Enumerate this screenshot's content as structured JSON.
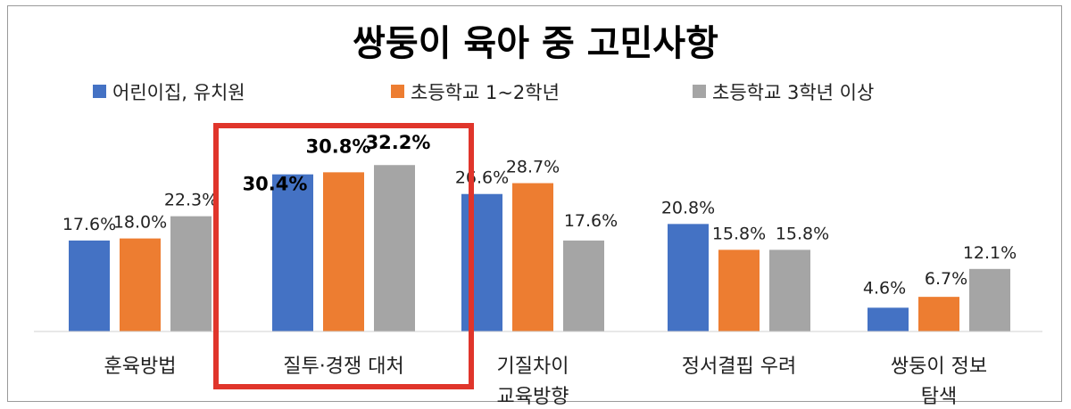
{
  "chart_data": {
    "type": "bar",
    "title": "쌍둥이 육아 중 고민사항",
    "categories": [
      [
        "훈육방법"
      ],
      [
        "질투·경쟁 대처"
      ],
      [
        "기질차이",
        "교육방향"
      ],
      [
        "정서결핍 우려"
      ],
      [
        "쌍둥이 정보",
        "탐색"
      ]
    ],
    "series": [
      {
        "name": "어린이집, 유치원",
        "color": "#4472c4",
        "values": [
          17.6,
          30.4,
          26.6,
          20.8,
          4.6
        ],
        "labels": [
          "17.6%",
          "30.4%",
          "26.6%",
          "20.8%",
          "4.6%"
        ]
      },
      {
        "name": "초등학교 1~2학년",
        "color": "#ed7d31",
        "values": [
          18.0,
          30.8,
          28.7,
          15.8,
          6.7
        ],
        "labels": [
          "18.0%",
          "30.8%",
          "28.7%",
          "15.8%",
          "6.7%"
        ]
      },
      {
        "name": "초등학교 3학년 이상",
        "color": "#a5a5a5",
        "values": [
          22.3,
          32.2,
          17.6,
          15.8,
          12.1
        ],
        "labels": [
          "22.3%",
          "32.2%",
          "17.6%",
          "15.8%",
          "12.1%"
        ]
      }
    ],
    "highlight": {
      "category_index": 1,
      "color": "#e0352b"
    },
    "legend_position": "top",
    "grid": false,
    "ylim": [
      0,
      40
    ]
  }
}
